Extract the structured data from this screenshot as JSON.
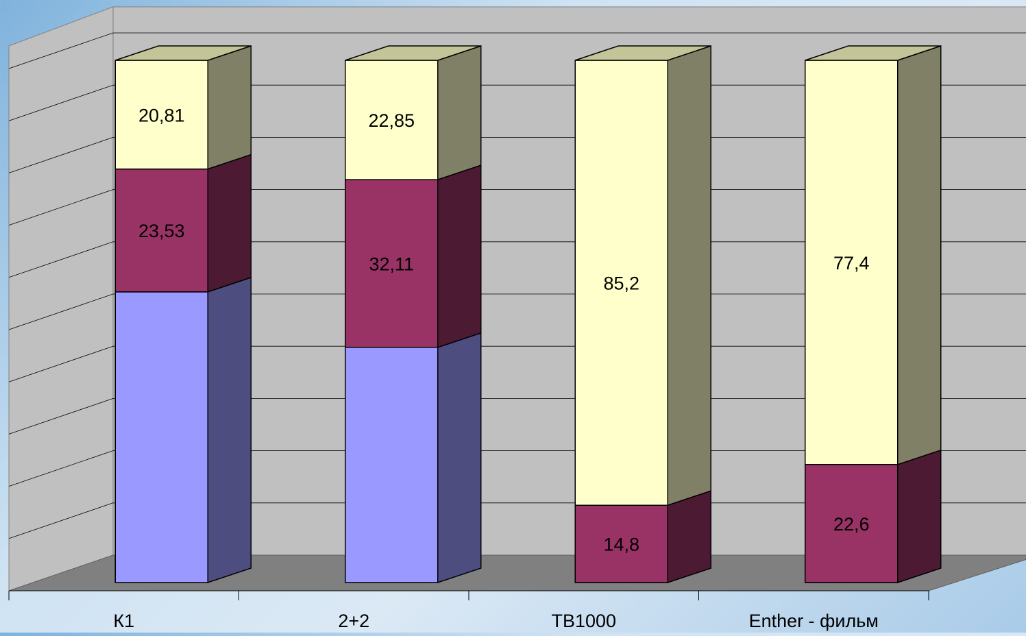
{
  "chart_data": {
    "type": "bar",
    "stacked": true,
    "three_d": true,
    "title": "",
    "xlabel": "",
    "ylabel": "",
    "ylim": [
      0,
      100
    ],
    "grid": true,
    "categories": [
      "К1",
      "2+2",
      "ТВ1000",
      "Enther - фильм"
    ],
    "series": [
      {
        "values": [
          55.66,
          45.04,
          0,
          0
        ],
        "labels": [
          "",
          "",
          "",
          ""
        ],
        "color": "#9999ff",
        "side_color": "#4d4d80",
        "top_color": "#c2c2ff"
      },
      {
        "values": [
          23.53,
          32.11,
          14.8,
          22.6
        ],
        "labels": [
          "23,53",
          "32,11",
          "14,8",
          "22,6"
        ],
        "color": "#993366",
        "side_color": "#4d1a33",
        "top_color": "#b86b92"
      },
      {
        "values": [
          20.81,
          22.85,
          85.2,
          77.4
        ],
        "labels": [
          "20,81",
          "22,85",
          "85,2",
          "77,4"
        ],
        "color": "#ffffcc",
        "side_color": "#808066",
        "top_color": "#c4c499"
      }
    ],
    "colors": {
      "wall": "#c0c0c0",
      "floor": "#808080",
      "gridline": "#000000"
    }
  }
}
